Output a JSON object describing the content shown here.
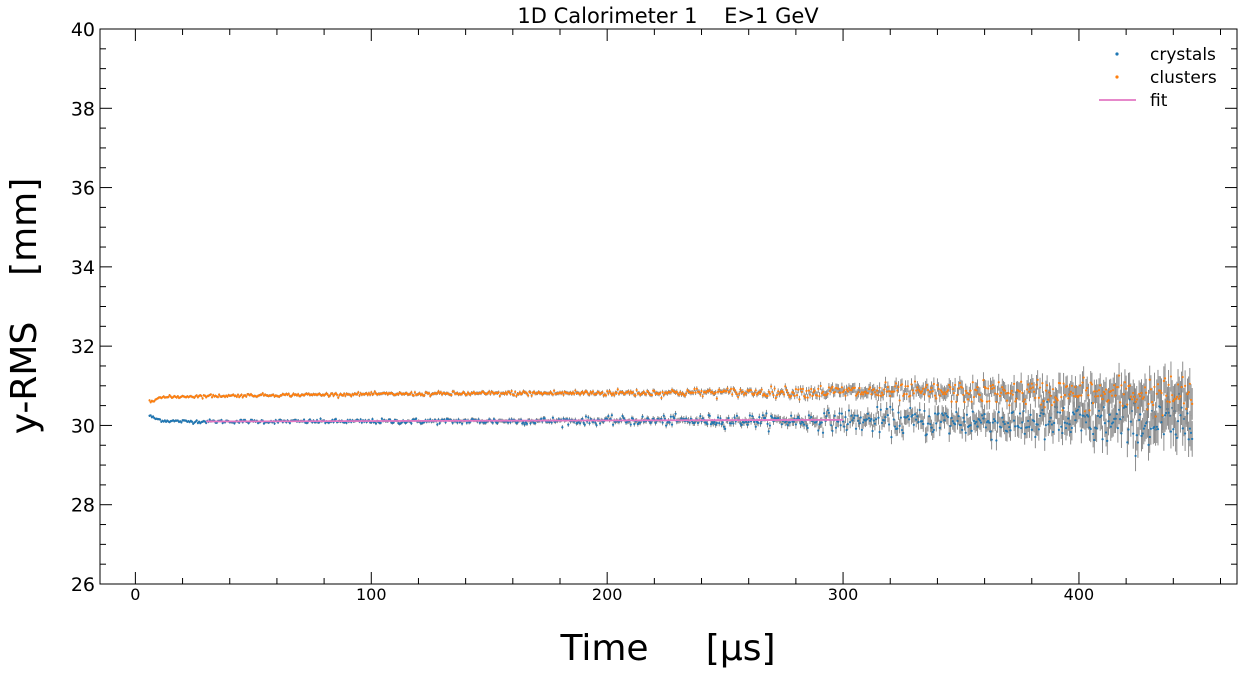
{
  "chart_data": {
    "type": "scatter",
    "title": "1D Calorimeter 1    E>1 GeV",
    "xlabel": "Time     [μs]",
    "ylabel": "y-RMS    [mm]",
    "xlim": [
      -15,
      467
    ],
    "ylim": [
      26,
      40
    ],
    "xticks": [
      0,
      100,
      200,
      300,
      400
    ],
    "yticks": [
      26,
      28,
      30,
      32,
      34,
      36,
      38,
      40
    ],
    "x_minor_step": 20,
    "y_minor_step": 0.5,
    "grid": false,
    "legend_position": "top-right",
    "colors": {
      "crystals": "#1f77b4",
      "clusters": "#ff7f0e",
      "fit": "#e377c2",
      "errorbar": "#808080"
    },
    "series": [
      {
        "name": "crystals",
        "marker": "point",
        "x_range": [
          6,
          448
        ],
        "x_step": 0.5,
        "trend": [
          [
            6,
            30.25
          ],
          [
            8,
            30.18
          ],
          [
            12,
            30.12
          ],
          [
            20,
            30.1
          ],
          [
            30,
            30.1
          ],
          [
            100,
            30.1
          ],
          [
            200,
            30.12
          ],
          [
            300,
            30.12
          ],
          [
            350,
            30.1
          ],
          [
            400,
            30.05
          ],
          [
            448,
            30.0
          ]
        ],
        "error": [
          [
            6,
            0.03
          ],
          [
            100,
            0.04
          ],
          [
            200,
            0.06
          ],
          [
            270,
            0.09
          ],
          [
            300,
            0.15
          ],
          [
            350,
            0.22
          ],
          [
            400,
            0.32
          ],
          [
            448,
            0.45
          ]
        ],
        "scatter": [
          [
            6,
            0.02
          ],
          [
            100,
            0.03
          ],
          [
            200,
            0.05
          ],
          [
            270,
            0.08
          ],
          [
            300,
            0.13
          ],
          [
            350,
            0.2
          ],
          [
            400,
            0.27
          ],
          [
            448,
            0.33
          ]
        ]
      },
      {
        "name": "clusters",
        "marker": "point",
        "x_range": [
          6,
          448
        ],
        "x_step": 0.5,
        "trend": [
          [
            6,
            30.62
          ],
          [
            10,
            30.7
          ],
          [
            20,
            30.73
          ],
          [
            50,
            30.76
          ],
          [
            100,
            30.79
          ],
          [
            200,
            30.82
          ],
          [
            300,
            30.85
          ],
          [
            350,
            30.83
          ],
          [
            400,
            30.8
          ],
          [
            448,
            30.75
          ]
        ],
        "error": [
          [
            6,
            0.03
          ],
          [
            100,
            0.04
          ],
          [
            200,
            0.05
          ],
          [
            270,
            0.07
          ],
          [
            300,
            0.12
          ],
          [
            350,
            0.18
          ],
          [
            400,
            0.28
          ],
          [
            448,
            0.4
          ]
        ],
        "scatter": [
          [
            6,
            0.02
          ],
          [
            100,
            0.02
          ],
          [
            200,
            0.04
          ],
          [
            270,
            0.06
          ],
          [
            300,
            0.09
          ],
          [
            350,
            0.13
          ],
          [
            400,
            0.2
          ],
          [
            448,
            0.26
          ]
        ]
      },
      {
        "name": "fit",
        "marker": "line",
        "x": [
          30,
          300
        ],
        "y": [
          30.1,
          30.14
        ]
      }
    ]
  }
}
